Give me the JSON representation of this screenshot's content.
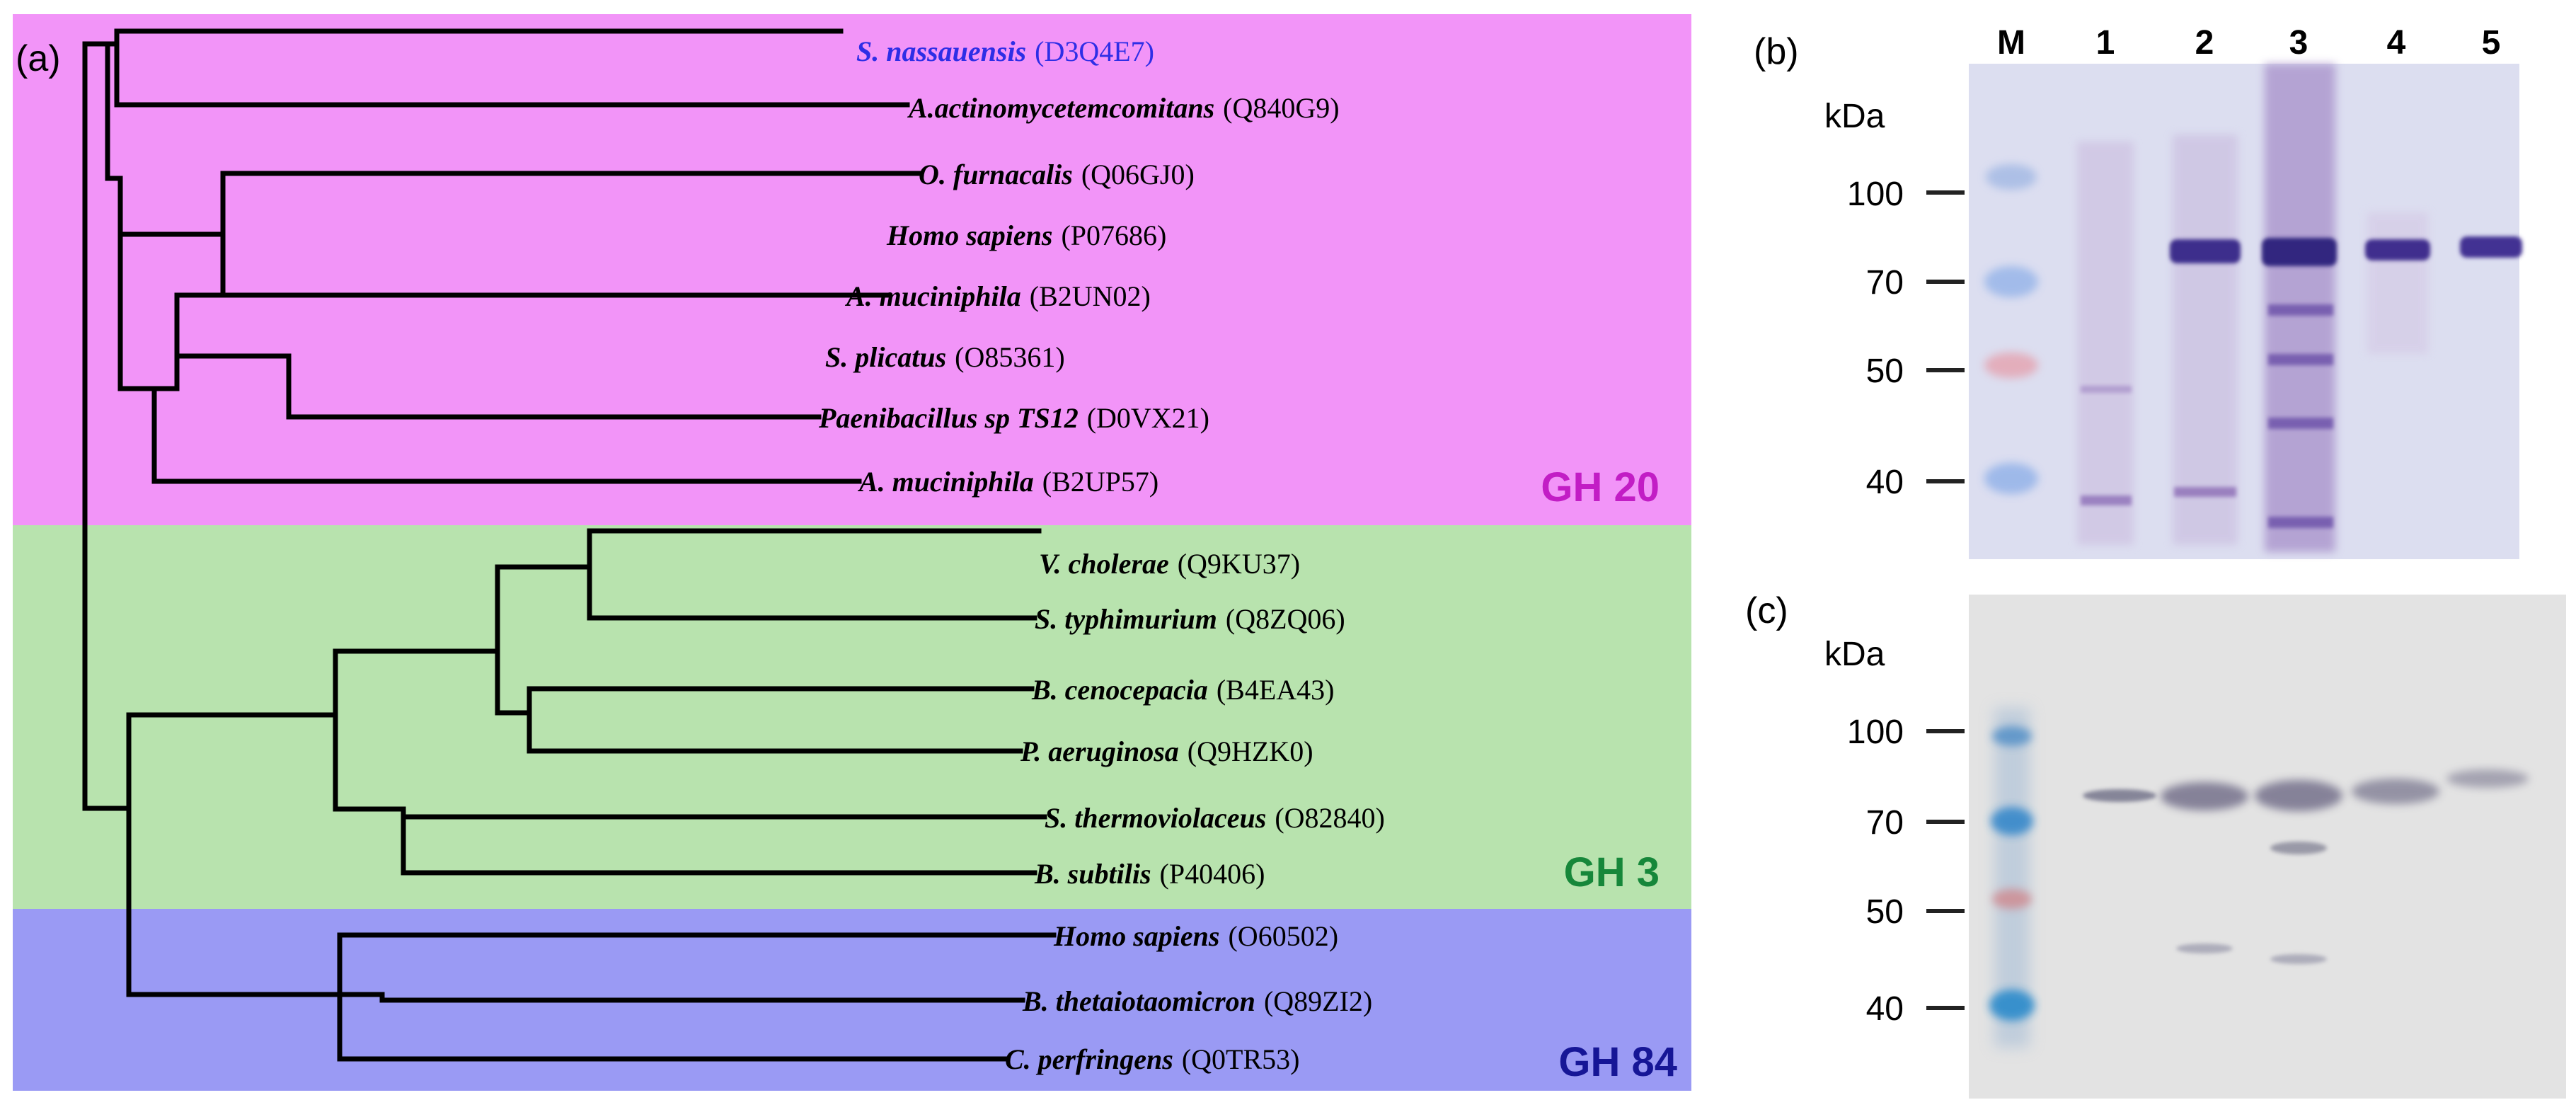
{
  "panels": {
    "a": "(a)",
    "b": "(b)",
    "c": "(c)"
  },
  "families": {
    "gh20": {
      "label": "GH 20",
      "band_color": "#F294F8",
      "text_color": "#C21DC5"
    },
    "gh3": {
      "label": "GH 3",
      "band_color": "#B8E3AE",
      "text_color": "#16873A"
    },
    "gh84": {
      "label": "GH 84",
      "band_color": "#9A9AF4",
      "text_color": "#161696"
    }
  },
  "taxa": [
    {
      "species": "S. nassauensis",
      "accession": "(D3Q4E7)",
      "highlight_color": "#2E2EE6"
    },
    {
      "species": "A.actinomycetemcomitans",
      "accession": "(Q840G9)"
    },
    {
      "species": "O. furnacalis",
      "accession": "(Q06GJ0)"
    },
    {
      "species": "Homo sapiens",
      "accession": "(P07686)"
    },
    {
      "species": "A. muciniphila",
      "accession": "(B2UN02)"
    },
    {
      "species": "S. plicatus",
      "accession": "(O85361)"
    },
    {
      "species": "Paenibacillus sp TS12",
      "accession": "(D0VX21)"
    },
    {
      "species": "A. muciniphila",
      "accession": "(B2UP57)"
    },
    {
      "species": "V. cholerae",
      "accession": "(Q9KU37)"
    },
    {
      "species": "S. typhimurium",
      "accession": "(Q8ZQ06)"
    },
    {
      "species": "B. cenocepacia",
      "accession": "(B4EA43)"
    },
    {
      "species": "P. aeruginosa",
      "accession": "(Q9HZK0)"
    },
    {
      "species": "S. thermoviolaceus",
      "accession": "(O82840)"
    },
    {
      "species": "B. subtilis",
      "accession": "(P40406)"
    },
    {
      "species": "Homo sapiens",
      "accession": "(O60502)"
    },
    {
      "species": "B. thetaiotaomicron",
      "accession": "(Q89ZI2)"
    },
    {
      "species": "C. perfringens",
      "accession": "(Q0TR53)"
    }
  ],
  "gel_b": {
    "lanes": [
      "M",
      "1",
      "2",
      "3",
      "4",
      "5"
    ],
    "unit": "kDa",
    "markers": [
      "100",
      "70",
      "50",
      "40"
    ]
  },
  "gel_c": {
    "unit": "kDa",
    "markers": [
      "100",
      "70",
      "50",
      "40"
    ]
  }
}
